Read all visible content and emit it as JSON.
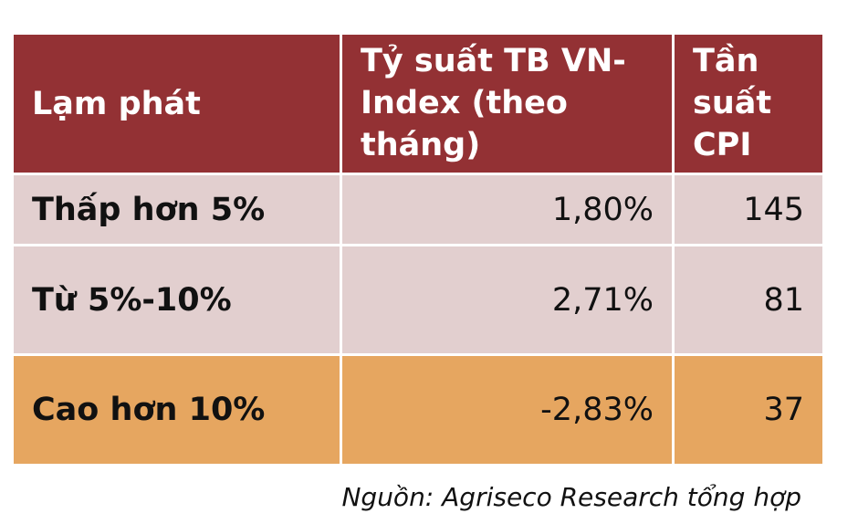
{
  "table": {
    "headers": [
      "Lạm phát",
      "Tỷ suất TB VN-Index (theo tháng)",
      "Tần suất CPI"
    ],
    "header_lines": {
      "col2": [
        "Tỷ suất TB VN-",
        "Index (theo",
        "tháng)"
      ],
      "col3": [
        "Tần",
        "suất",
        "CPI"
      ]
    },
    "rows": [
      {
        "label": "Thấp hơn 5%",
        "return": "1,80%",
        "frequency": "145"
      },
      {
        "label": "Từ 5%-10%",
        "return": "2,71%",
        "frequency": "81"
      },
      {
        "label": "Cao hơn 10%",
        "return": "-2,83%",
        "frequency": "37"
      }
    ]
  },
  "source": "Nguồn: Agriseco Research tổng hợp",
  "colors": {
    "header_bg": "#933134",
    "row_bg": "#e2cfcf",
    "highlight_row_bg": "#e6a660"
  }
}
